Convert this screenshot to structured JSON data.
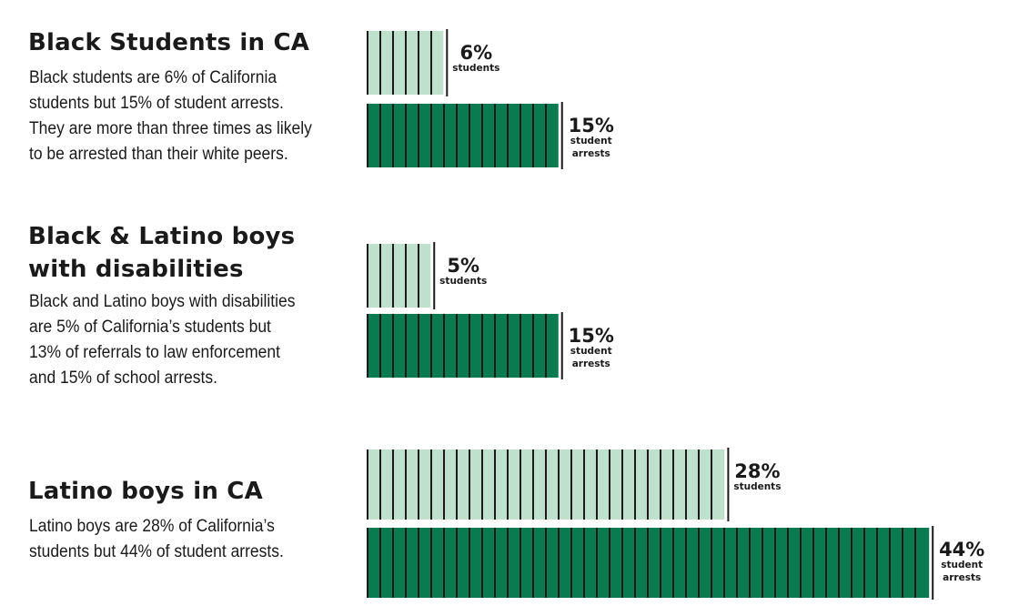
{
  "panels": [
    {
      "title_lines": [
        "Black Students in CA"
      ],
      "description_lines": [
        "Black students are 6% of California",
        "students but 15% of student arrests.",
        "They are more than three times as likely",
        "to be arrested than their white peers."
      ]
    },
    {
      "title_lines": [
        "Black & Latino boys",
        "with disabilities"
      ],
      "description_lines": [
        "Black and Latino boys with disabilities",
        "are 5% of California’s students but",
        "13% of referrals to law enforcement",
        "and 15% of school arrests."
      ]
    },
    {
      "title_lines": [
        "Latino boys in CA"
      ],
      "description_lines": [
        "Latino boys are 28% of California’s",
        "students but 44% of student arrests."
      ]
    }
  ],
  "chart_data": {
    "type": "bar",
    "orientation": "horizontal",
    "unit": "%",
    "colors": {
      "students": "#bfe0cc",
      "student_arrests": "#0a7a50",
      "tick": "#1a1a1a"
    },
    "groups": [
      {
        "group": "Black Students in CA",
        "bars": [
          {
            "kind": "students",
            "value": 6,
            "value_label": "6%",
            "label_lines": [
              "students"
            ]
          },
          {
            "kind": "student_arrests",
            "value": 15,
            "value_label": "15%",
            "label_lines": [
              "student",
              "arrests"
            ]
          }
        ]
      },
      {
        "group": "Black & Latino boys with disabilities",
        "bars": [
          {
            "kind": "students",
            "value": 5,
            "value_label": "5%",
            "label_lines": [
              "students"
            ]
          },
          {
            "kind": "student_arrests",
            "value": 15,
            "value_label": "15%",
            "label_lines": [
              "student",
              "arrests"
            ]
          }
        ]
      },
      {
        "group": "Latino boys in CA",
        "bars": [
          {
            "kind": "students",
            "value": 28,
            "value_label": "28%",
            "label_lines": [
              "students"
            ]
          },
          {
            "kind": "student_arrests",
            "value": 44,
            "value_label": "44%",
            "label_lines": [
              "student",
              "arrests"
            ]
          }
        ]
      }
    ]
  }
}
